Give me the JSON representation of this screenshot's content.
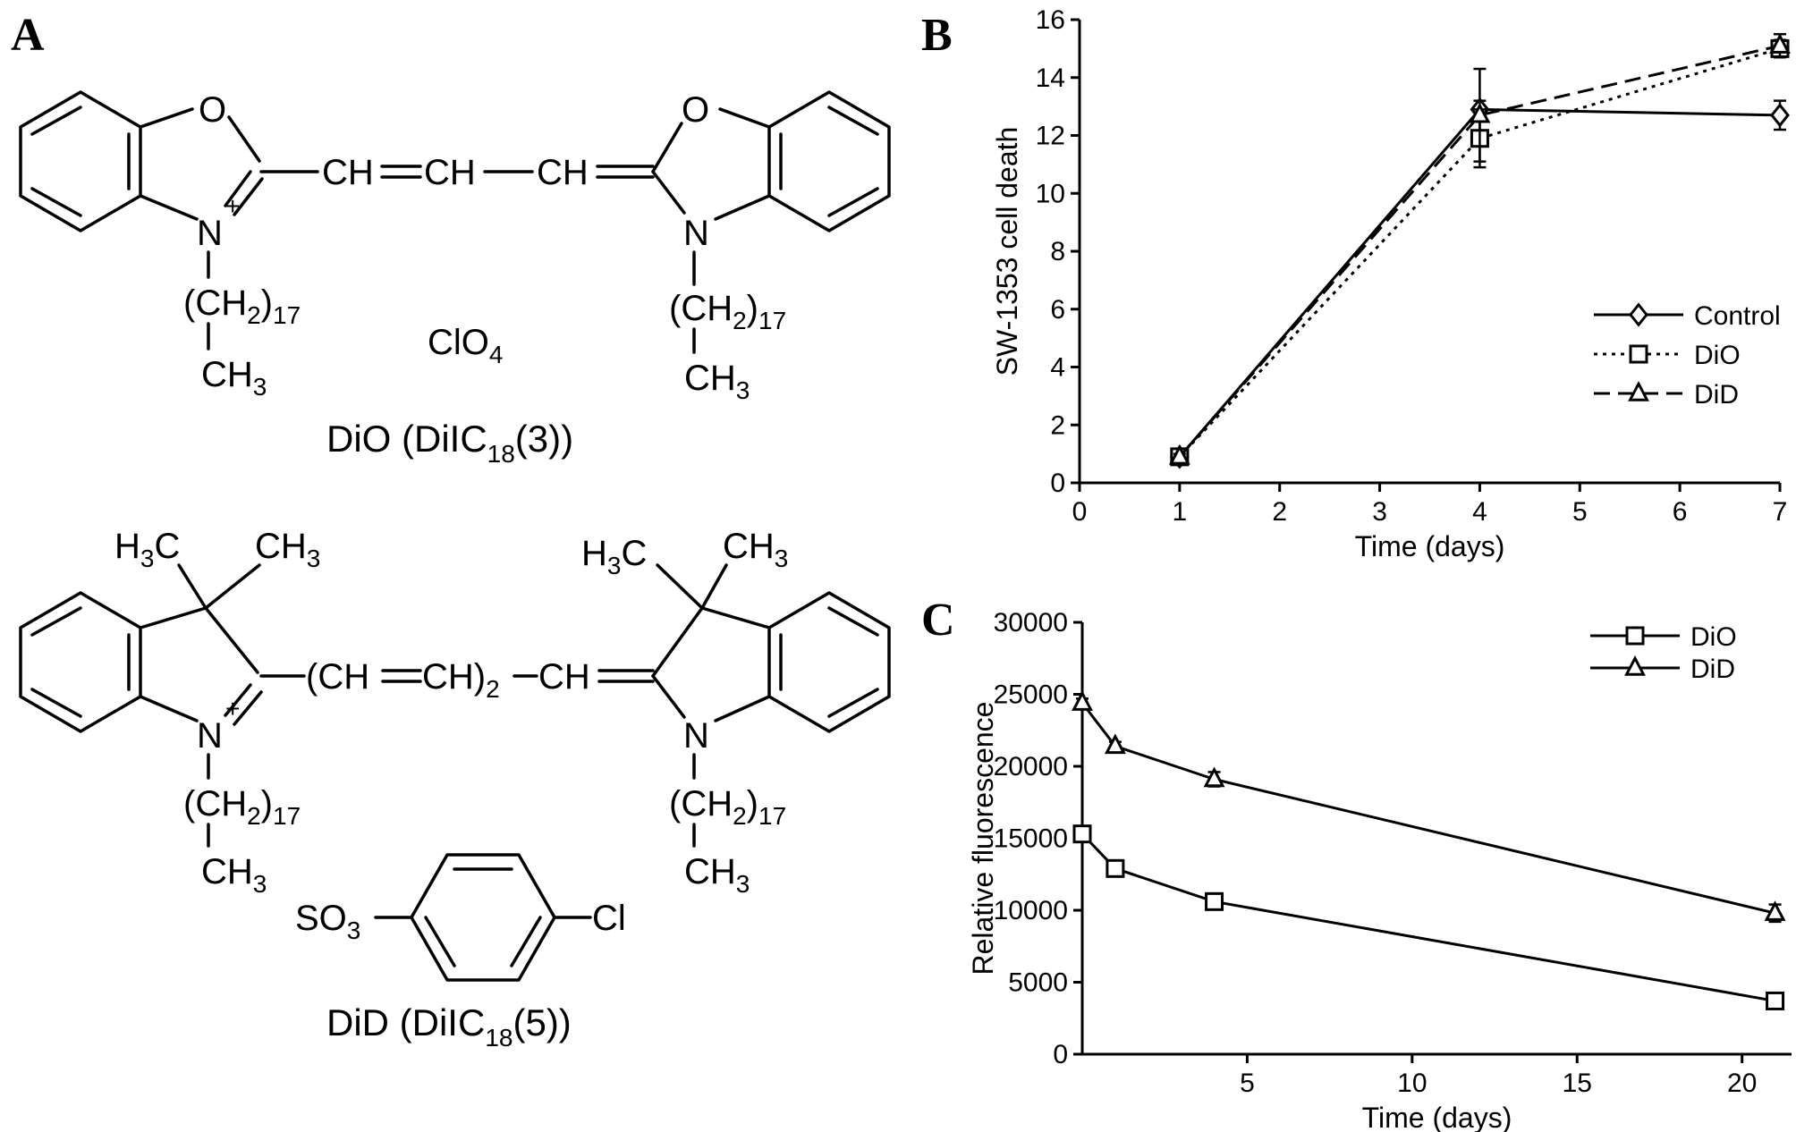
{
  "panels": {
    "a": "A",
    "b": "B",
    "c": "C"
  },
  "chemistry": {
    "dio": {
      "name": "DiO (DiIC",
      "name_sub": "18",
      "name_tail": "(3))",
      "o_left": "O",
      "o_right": "O",
      "n_left": "N",
      "n_right": "N",
      "charge": "+",
      "bridge_ch1": "CH",
      "bridge_ch2": "CH",
      "bridge_ch3": "CH",
      "chain_left": "(CH",
      "chain_left_sub": "2",
      "chain_left_tail": ")",
      "chain_left_count": "17",
      "chain_right": "(CH",
      "chain_right_sub": "2",
      "chain_right_tail": ")",
      "chain_right_count": "17",
      "terminal_left": "CH",
      "terminal_left_sub": "3",
      "terminal_right": "CH",
      "terminal_right_sub": "3",
      "counterion": "ClO",
      "counterion_sub": "4"
    },
    "did": {
      "name": "DiD (DiIC",
      "name_sub": "18",
      "name_tail": "(5))",
      "methyl_a": "H",
      "methyl_a_sub": "3",
      "methyl_a_tail": "C",
      "methyl_b": "CH",
      "methyl_b_sub": "3",
      "methyl_c": "H",
      "methyl_c_sub": "3",
      "methyl_c_tail": "C",
      "methyl_d": "CH",
      "methyl_d_sub": "3",
      "n_left": "N",
      "n_right": "N",
      "charge": "+",
      "bridge_open": "(CH",
      "bridge_mid": "CH)",
      "bridge_sub": "2",
      "bridge_end": "CH",
      "chain_left": "(CH",
      "chain_left_sub": "2",
      "chain_left_tail": ")",
      "chain_left_count": "17",
      "chain_right": "(CH",
      "chain_right_sub": "2",
      "chain_right_tail": ")",
      "chain_right_count": "17",
      "terminal_left": "CH",
      "terminal_left_sub": "3",
      "terminal_right": "CH",
      "terminal_right_sub": "3",
      "sulfonate": "SO",
      "sulfonate_sub": "3",
      "chloro": "Cl"
    }
  },
  "chart_data": [
    {
      "id": "B",
      "type": "line",
      "xlabel": "Time (days)",
      "ylabel": "SW-1353 cell death",
      "xlim": [
        0,
        7
      ],
      "ylim": [
        0,
        16
      ],
      "xticks": [
        0,
        1,
        2,
        3,
        4,
        5,
        6,
        7
      ],
      "yticks": [
        0,
        2,
        4,
        6,
        8,
        10,
        12,
        14,
        16
      ],
      "grid": false,
      "legend_position": "right",
      "series": [
        {
          "name": "Control",
          "marker": "diamond",
          "dash": "solid",
          "x": [
            1,
            4,
            7
          ],
          "y": [
            0.9,
            12.9,
            12.7
          ],
          "err": [
            0.1,
            0.3,
            0.5
          ]
        },
        {
          "name": "DiO",
          "marker": "square",
          "dash": "dotted",
          "x": [
            1,
            4,
            7
          ],
          "y": [
            0.9,
            11.9,
            15.0
          ],
          "err": [
            0.1,
            1.0,
            0.3
          ]
        },
        {
          "name": "DiD",
          "marker": "triangle",
          "dash": "dashed",
          "x": [
            1,
            4,
            7
          ],
          "y": [
            0.9,
            12.7,
            15.1
          ],
          "err": [
            0.1,
            1.6,
            0.4
          ]
        }
      ]
    },
    {
      "id": "C",
      "type": "line",
      "xlabel": "Time (days)",
      "ylabel": "Relative fluorescence",
      "xlim": [
        0,
        21.5
      ],
      "ylim": [
        0,
        30000
      ],
      "xticks": [
        5,
        10,
        15,
        20
      ],
      "yticks": [
        0,
        5000,
        10000,
        15000,
        20000,
        25000,
        30000
      ],
      "grid": false,
      "legend_position": "top-right",
      "series": [
        {
          "name": "DiO",
          "marker": "square",
          "dash": "solid",
          "x": [
            0,
            1,
            4,
            21
          ],
          "y": [
            15300,
            12900,
            10600,
            3700
          ],
          "err": [
            300,
            300,
            400,
            200
          ]
        },
        {
          "name": "DiD",
          "marker": "triangle",
          "dash": "solid",
          "x": [
            0,
            1,
            4,
            21
          ],
          "y": [
            24400,
            21400,
            19100,
            9800
          ],
          "err": [
            300,
            300,
            500,
            600
          ]
        }
      ]
    }
  ]
}
